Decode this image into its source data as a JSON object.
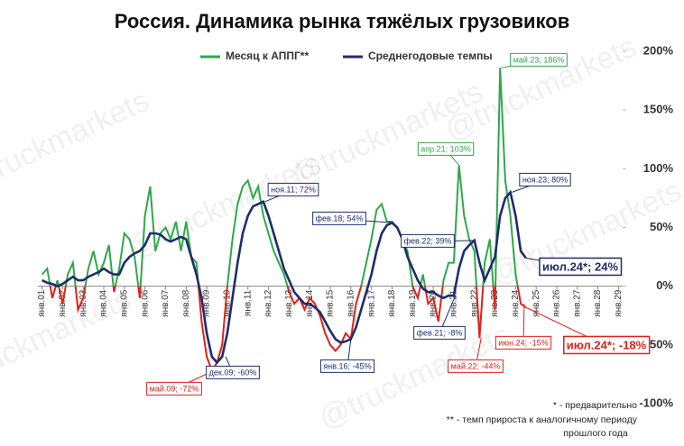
{
  "chart_data": {
    "type": "line",
    "title": "Россия. Динамика рынка тяжёлых грузовиков",
    "watermark": "@truckmarkets",
    "x": [
      2001,
      2001.25,
      2001.5,
      2001.75,
      2002,
      2002.25,
      2002.5,
      2002.75,
      2003,
      2003.25,
      2003.5,
      2003.75,
      2004,
      2004.25,
      2004.5,
      2004.75,
      2005,
      2005.25,
      2005.5,
      2005.75,
      2006,
      2006.25,
      2006.5,
      2006.75,
      2007,
      2007.25,
      2007.5,
      2007.75,
      2008,
      2008.25,
      2008.5,
      2008.75,
      2009,
      2009.25,
      2009.5,
      2009.75,
      2010,
      2010.25,
      2010.5,
      2010.75,
      2011,
      2011.25,
      2011.5,
      2011.75,
      2012,
      2012.25,
      2012.5,
      2012.75,
      2013,
      2013.25,
      2013.5,
      2013.75,
      2014,
      2014.25,
      2014.5,
      2014.75,
      2015,
      2015.25,
      2015.5,
      2015.75,
      2016,
      2016.25,
      2016.5,
      2016.75,
      2017,
      2017.25,
      2017.5,
      2017.75,
      2018,
      2018.25,
      2018.5,
      2018.75,
      2019,
      2019.25,
      2019.5,
      2019.75,
      2020,
      2020.25,
      2020.5,
      2020.75,
      2021,
      2021.25,
      2021.5,
      2021.75,
      2022,
      2022.25,
      2022.5,
      2022.75,
      2023,
      2023.25,
      2023.5,
      2023.75,
      2024,
      2024.25,
      2024.5
    ],
    "series": [
      {
        "name": "Месяц к АППГ**",
        "color": "#2ea84a",
        "negative_color": "#e0201b",
        "values": [
          10,
          15,
          -10,
          5,
          -15,
          10,
          20,
          -20,
          -10,
          15,
          30,
          10,
          20,
          35,
          -5,
          15,
          45,
          40,
          25,
          -10,
          60,
          85,
          30,
          45,
          50,
          40,
          55,
          30,
          55,
          25,
          20,
          -30,
          -60,
          -72,
          -65,
          -50,
          0,
          40,
          70,
          85,
          90,
          75,
          85,
          60,
          45,
          30,
          20,
          10,
          -5,
          -15,
          -10,
          -20,
          -10,
          -15,
          -25,
          -40,
          -50,
          -55,
          -50,
          -40,
          -45,
          -15,
          0,
          20,
          40,
          65,
          70,
          55,
          55,
          50,
          40,
          30,
          0,
          -10,
          10,
          -15,
          -10,
          -30,
          5,
          20,
          20,
          103,
          60,
          40,
          30,
          -44,
          20,
          40,
          -20,
          186,
          90,
          60,
          10,
          -15,
          -18
        ]
      },
      {
        "name": "Среднегодовые темпы",
        "color": "#1f2d6b",
        "values": [
          5,
          3,
          2,
          0,
          2,
          5,
          8,
          5,
          5,
          8,
          10,
          12,
          15,
          12,
          10,
          10,
          20,
          25,
          28,
          30,
          35,
          45,
          45,
          44,
          40,
          38,
          40,
          42,
          40,
          25,
          10,
          -10,
          -40,
          -60,
          -65,
          -60,
          -40,
          -10,
          20,
          45,
          60,
          68,
          70,
          72,
          60,
          45,
          30,
          15,
          5,
          -5,
          -10,
          -15,
          -15,
          -18,
          -22,
          -30,
          -38,
          -45,
          -48,
          -47,
          -45,
          -35,
          -20,
          -5,
          10,
          30,
          45,
          52,
          54,
          50,
          40,
          25,
          15,
          5,
          -2,
          -5,
          -5,
          -8,
          -10,
          -8,
          -8,
          15,
          30,
          35,
          39,
          20,
          5,
          15,
          25,
          60,
          75,
          80,
          60,
          30,
          24
        ]
      }
    ],
    "xlim": [
      2000.8,
      2029.2
    ],
    "xticks": [
      {
        "value": 2001,
        "label": "янв.01"
      },
      {
        "value": 2002,
        "label": "янв.02"
      },
      {
        "value": 2003,
        "label": "янв.03"
      },
      {
        "value": 2004,
        "label": "янв.04"
      },
      {
        "value": 2005,
        "label": "янв.05"
      },
      {
        "value": 2006,
        "label": "янв.06"
      },
      {
        "value": 2007,
        "label": "янв.07"
      },
      {
        "value": 2008,
        "label": "янв.08"
      },
      {
        "value": 2009,
        "label": "янв.09"
      },
      {
        "value": 2010,
        "label": "янв.10"
      },
      {
        "value": 2011,
        "label": "янв.11"
      },
      {
        "value": 2012,
        "label": "янв.12"
      },
      {
        "value": 2013,
        "label": "янв.13"
      },
      {
        "value": 2014,
        "label": "янв.14"
      },
      {
        "value": 2015,
        "label": "янв.15"
      },
      {
        "value": 2016,
        "label": "янв.16"
      },
      {
        "value": 2017,
        "label": "янв.17"
      },
      {
        "value": 2018,
        "label": "янв.18"
      },
      {
        "value": 2019,
        "label": "янв.19"
      },
      {
        "value": 2020,
        "label": "янв.20"
      },
      {
        "value": 2021,
        "label": "янв.21"
      },
      {
        "value": 2022,
        "label": "янв.22"
      },
      {
        "value": 2023,
        "label": "янв.23"
      },
      {
        "value": 2024,
        "label": "янв.24"
      },
      {
        "value": 2025,
        "label": "янв.25"
      },
      {
        "value": 2026,
        "label": "янв.26"
      },
      {
        "value": 2027,
        "label": "янв.27"
      },
      {
        "value": 2028,
        "label": "янв.28"
      },
      {
        "value": 2029,
        "label": "янв.29"
      }
    ],
    "ylim": [
      -100,
      200
    ],
    "yticks": [
      {
        "value": -100,
        "label": "-100%"
      },
      {
        "value": -50,
        "label": "-50%"
      },
      {
        "value": 0,
        "label": "0%"
      },
      {
        "value": 50,
        "label": "50%"
      },
      {
        "value": 100,
        "label": "100%"
      },
      {
        "value": 150,
        "label": "150%"
      },
      {
        "value": 200,
        "label": "200%"
      }
    ],
    "annotations": [
      {
        "x": 2009.33,
        "y": -72,
        "text": "май.09; -72%",
        "color": "#e0201b"
      },
      {
        "x": 2009.92,
        "y": -60,
        "text": "дек.09; -60%",
        "color": "#1f2d6b"
      },
      {
        "x": 2011.83,
        "y": 72,
        "text": "ноя.11; 72%",
        "color": "#1f2d6b"
      },
      {
        "x": 2016.0,
        "y": -45,
        "text": "янв.16; -45%",
        "color": "#1f2d6b"
      },
      {
        "x": 2018.08,
        "y": 54,
        "text": "фев.18; 54%",
        "color": "#1f2d6b"
      },
      {
        "x": 2021.08,
        "y": -8,
        "text": "фев.21; -8%",
        "color": "#1f2d6b"
      },
      {
        "x": 2022.08,
        "y": 39,
        "text": "фев.22; 39%",
        "color": "#1f2d6b"
      },
      {
        "x": 2021.25,
        "y": 103,
        "text": "апр.21; 103%",
        "color": "#2ea84a"
      },
      {
        "x": 2022.33,
        "y": -44,
        "text": "май.22; -44%",
        "color": "#e0201b"
      },
      {
        "x": 2023.33,
        "y": 186,
        "text": "май.23; 186%",
        "color": "#2ea84a"
      },
      {
        "x": 2023.83,
        "y": 80,
        "text": "ноя.23; 80%",
        "color": "#1f2d6b"
      },
      {
        "x": 2024.42,
        "y": -15,
        "text": "июн.24; -15%",
        "color": "#e0201b"
      },
      {
        "x": 2024.5,
        "y": 24,
        "text": "июл.24*; 24%",
        "color": "#1f2d6b"
      },
      {
        "x": 2024.5,
        "y": -18,
        "text": "июл.24*; -18%",
        "color": "#e0201b"
      }
    ],
    "footnotes": [
      "* - предварительно",
      "** - темп прироста к аналогичному периоду",
      "прошлого года"
    ]
  }
}
